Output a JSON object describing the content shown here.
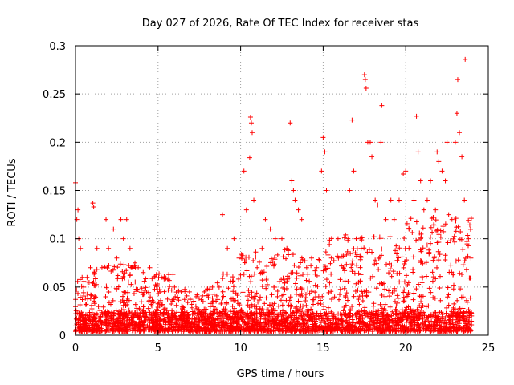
{
  "chart_data": {
    "type": "scatter",
    "title": "Day 027 of 2026, Rate Of TEC Index for receiver stas",
    "xlabel": "GPS time / hours",
    "ylabel": "ROTI / TECUs",
    "xlim": [
      0,
      25
    ],
    "ylim": [
      0,
      0.3
    ],
    "x_ticks": [
      0,
      5,
      10,
      15,
      20,
      25
    ],
    "x_tick_labels": [
      "0",
      "5",
      "10",
      "15",
      "20",
      "25"
    ],
    "y_ticks": [
      0,
      0.05,
      0.1,
      0.15,
      0.2,
      0.25,
      0.3
    ],
    "y_tick_labels": [
      "0",
      "0.05",
      "0.1",
      "0.15",
      "0.2",
      "0.25",
      "0.3"
    ],
    "grid": true,
    "marker": "+",
    "series": [
      {
        "name": "ROTI",
        "color": "#ff0000",
        "points": [
          [
            0.0,
            0.158
          ],
          [
            0.08,
            0.12
          ],
          [
            0.15,
            0.13
          ],
          [
            0.2,
            0.1
          ],
          [
            0.3,
            0.09
          ],
          [
            0.4,
            0.06
          ],
          [
            0.5,
            0.05
          ],
          [
            0.7,
            0.06
          ],
          [
            0.9,
            0.07
          ],
          [
            1.05,
            0.137
          ],
          [
            1.1,
            0.133
          ],
          [
            1.3,
            0.09
          ],
          [
            1.6,
            0.07
          ],
          [
            1.85,
            0.12
          ],
          [
            2.0,
            0.09
          ],
          [
            2.3,
            0.11
          ],
          [
            2.5,
            0.08
          ],
          [
            2.75,
            0.12
          ],
          [
            2.9,
            0.1
          ],
          [
            3.1,
            0.12
          ],
          [
            3.3,
            0.09
          ],
          [
            3.6,
            0.075
          ],
          [
            3.8,
            0.07
          ],
          [
            4.1,
            0.065
          ],
          [
            4.5,
            0.07
          ],
          [
            4.9,
            0.063
          ],
          [
            5.2,
            0.06
          ],
          [
            5.6,
            0.058
          ],
          [
            6.0,
            0.05
          ],
          [
            6.4,
            0.045
          ],
          [
            6.9,
            0.045
          ],
          [
            7.3,
            0.04
          ],
          [
            7.8,
            0.045
          ],
          [
            8.3,
            0.05
          ],
          [
            8.7,
            0.05
          ],
          [
            8.9,
            0.125
          ],
          [
            9.2,
            0.09
          ],
          [
            9.6,
            0.1
          ],
          [
            9.9,
            0.08
          ],
          [
            10.2,
            0.17
          ],
          [
            10.35,
            0.13
          ],
          [
            10.55,
            0.184
          ],
          [
            10.6,
            0.226
          ],
          [
            10.65,
            0.22
          ],
          [
            10.7,
            0.21
          ],
          [
            10.8,
            0.14
          ],
          [
            11.0,
            0.07
          ],
          [
            11.3,
            0.09
          ],
          [
            11.5,
            0.12
          ],
          [
            11.8,
            0.11
          ],
          [
            12.1,
            0.1
          ],
          [
            12.5,
            0.1
          ],
          [
            12.8,
            0.09
          ],
          [
            13.0,
            0.22
          ],
          [
            13.1,
            0.16
          ],
          [
            13.2,
            0.15
          ],
          [
            13.3,
            0.14
          ],
          [
            13.5,
            0.13
          ],
          [
            13.7,
            0.12
          ],
          [
            14.0,
            0.07
          ],
          [
            14.3,
            0.08
          ],
          [
            14.6,
            0.07
          ],
          [
            14.9,
            0.17
          ],
          [
            15.0,
            0.205
          ],
          [
            15.1,
            0.19
          ],
          [
            15.2,
            0.15
          ],
          [
            15.5,
            0.08
          ],
          [
            15.9,
            0.1
          ],
          [
            16.2,
            0.07
          ],
          [
            16.5,
            0.1
          ],
          [
            16.6,
            0.15
          ],
          [
            16.75,
            0.223
          ],
          [
            16.85,
            0.17
          ],
          [
            17.0,
            0.1
          ],
          [
            17.3,
            0.09
          ],
          [
            17.5,
            0.27
          ],
          [
            17.55,
            0.265
          ],
          [
            17.6,
            0.256
          ],
          [
            17.7,
            0.2
          ],
          [
            17.85,
            0.2
          ],
          [
            17.95,
            0.185
          ],
          [
            18.15,
            0.14
          ],
          [
            18.3,
            0.135
          ],
          [
            18.5,
            0.2
          ],
          [
            18.55,
            0.238
          ],
          [
            18.8,
            0.12
          ],
          [
            19.1,
            0.14
          ],
          [
            19.3,
            0.12
          ],
          [
            19.6,
            0.14
          ],
          [
            19.85,
            0.167
          ],
          [
            20.0,
            0.17
          ],
          [
            20.2,
            0.11
          ],
          [
            20.5,
            0.14
          ],
          [
            20.65,
            0.227
          ],
          [
            20.75,
            0.19
          ],
          [
            20.9,
            0.16
          ],
          [
            21.1,
            0.13
          ],
          [
            21.3,
            0.14
          ],
          [
            21.5,
            0.16
          ],
          [
            21.8,
            0.13
          ],
          [
            21.9,
            0.19
          ],
          [
            22.0,
            0.18
          ],
          [
            22.2,
            0.17
          ],
          [
            22.4,
            0.16
          ],
          [
            22.5,
            0.2
          ],
          [
            22.6,
            0.125
          ],
          [
            22.8,
            0.12
          ],
          [
            23.0,
            0.2
          ],
          [
            23.1,
            0.23
          ],
          [
            23.15,
            0.265
          ],
          [
            23.25,
            0.21
          ],
          [
            23.4,
            0.185
          ],
          [
            23.55,
            0.14
          ],
          [
            23.6,
            0.286
          ],
          [
            23.8,
            0.1
          ],
          [
            23.95,
            0.08
          ]
        ]
      }
    ]
  }
}
